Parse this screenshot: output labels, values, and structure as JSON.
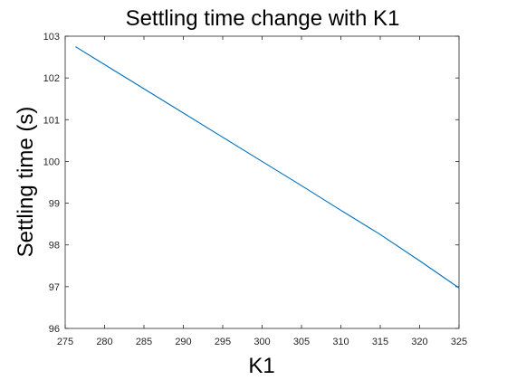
{
  "chart_data": {
    "type": "line",
    "title": "Settling time change with K1",
    "xlabel": "K1",
    "ylabel": "Settling time (s)",
    "xlim": [
      275,
      325
    ],
    "ylim": [
      96,
      103
    ],
    "xticks": [
      275,
      280,
      285,
      290,
      295,
      300,
      305,
      310,
      315,
      320,
      325
    ],
    "yticks": [
      96,
      97,
      98,
      99,
      100,
      101,
      102,
      103
    ],
    "grid": false,
    "series": [
      {
        "color": "#0072bd",
        "x": [
          276.3,
          280,
          285,
          290,
          295,
          300,
          305,
          310,
          315,
          320,
          325
        ],
        "y": [
          102.75,
          102.32,
          101.74,
          101.16,
          100.58,
          100.0,
          99.42,
          98.83,
          98.25,
          97.62,
          96.97
        ]
      }
    ]
  }
}
